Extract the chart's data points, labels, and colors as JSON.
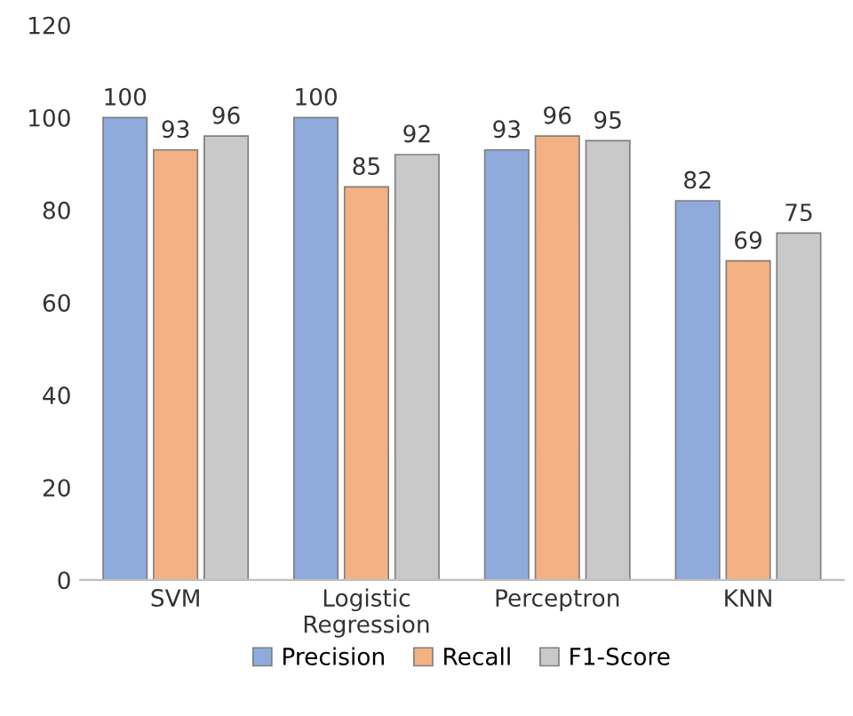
{
  "chart_data": {
    "type": "bar",
    "categories": [
      "SVM",
      "Logistic\nRegression",
      "Perceptron",
      "KNN"
    ],
    "series": [
      {
        "name": "Precision",
        "color": "#8faadc",
        "values": [
          100,
          100,
          93,
          82
        ]
      },
      {
        "name": "Recall",
        "color": "#f4b183",
        "values": [
          93,
          85,
          96,
          69
        ]
      },
      {
        "name": "F1-Score",
        "color": "#c9c9c9",
        "values": [
          96,
          92,
          95,
          75
        ]
      }
    ],
    "ylim": [
      0,
      120
    ],
    "yticks": [
      0,
      20,
      40,
      60,
      80,
      100,
      120
    ],
    "data_labels": true,
    "legend": "bottom",
    "grid": false
  }
}
